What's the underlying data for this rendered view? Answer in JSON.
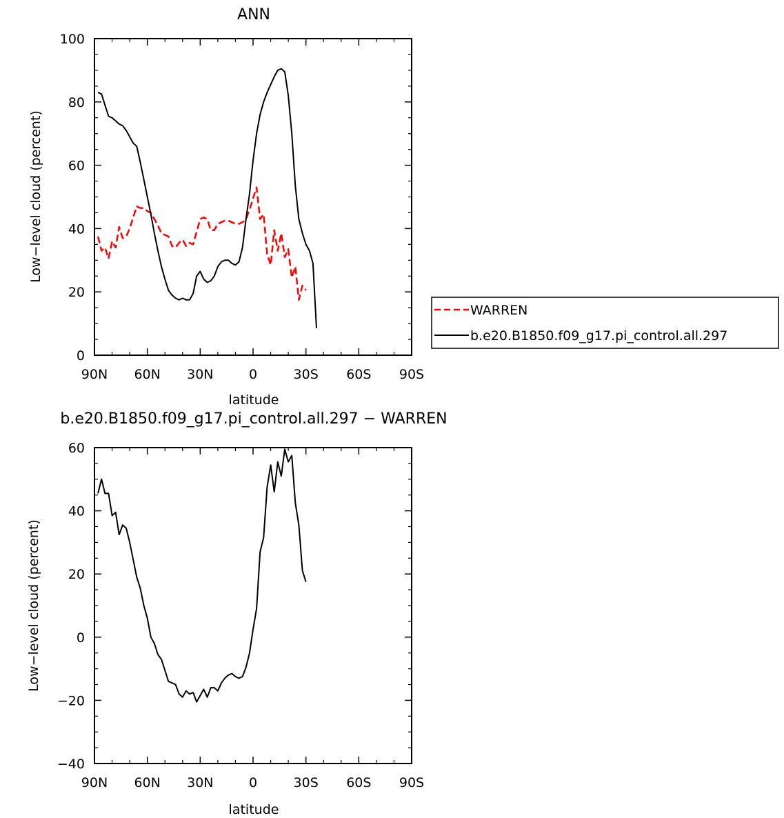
{
  "chart_data": [
    {
      "type": "line",
      "title": "ANN",
      "xlabel": "latitude",
      "ylabel": "Low−level cloud (percent)",
      "xlim": [
        90,
        -90
      ],
      "ylim": [
        0,
        100
      ],
      "yticks": [
        0,
        20,
        40,
        60,
        80,
        100
      ],
      "xticks": [
        {
          "value": 90,
          "label": "90N"
        },
        {
          "value": 60,
          "label": "60N"
        },
        {
          "value": 30,
          "label": "30N"
        },
        {
          "value": 0,
          "label": "0"
        },
        {
          "value": -30,
          "label": "30S"
        },
        {
          "value": -60,
          "label": "60S"
        },
        {
          "value": -90,
          "label": "90S"
        }
      ],
      "legend": "right",
      "series": [
        {
          "name": "WARREN",
          "color": "#ff0000",
          "dash": true,
          "points": [
            [
              88,
              37.5
            ],
            [
              86,
              33
            ],
            [
              84,
              34
            ],
            [
              82,
              30.5
            ],
            [
              80,
              36
            ],
            [
              78,
              34
            ],
            [
              76,
              40.5
            ],
            [
              74,
              37
            ],
            [
              72,
              37.5
            ],
            [
              70,
              40
            ],
            [
              68,
              43.5
            ],
            [
              66,
              47
            ],
            [
              64,
              46.5
            ],
            [
              62,
              46.5
            ],
            [
              60,
              45.5
            ],
            [
              58,
              45
            ],
            [
              56,
              43
            ],
            [
              54,
              41
            ],
            [
              52,
              38.5
            ],
            [
              50,
              38
            ],
            [
              48,
              37.5
            ],
            [
              46,
              34.5
            ],
            [
              44,
              34
            ],
            [
              42,
              35.5
            ],
            [
              40,
              36.5
            ],
            [
              38,
              34.5
            ],
            [
              36,
              35.5
            ],
            [
              34,
              35
            ],
            [
              32,
              39
            ],
            [
              30,
              43
            ],
            [
              28,
              43.5
            ],
            [
              26,
              43
            ],
            [
              24,
              39.5
            ],
            [
              22,
              39.5
            ],
            [
              20,
              41.5
            ],
            [
              18,
              42
            ],
            [
              16,
              42.5
            ],
            [
              14,
              42.5
            ],
            [
              12,
              42
            ],
            [
              10,
              41.5
            ],
            [
              8,
              41.5
            ],
            [
              6,
              42
            ],
            [
              4,
              43
            ],
            [
              2,
              46
            ],
            [
              0,
              49.5
            ],
            [
              -2,
              53
            ],
            [
              -4,
              43
            ],
            [
              -6,
              44.5
            ],
            [
              -8,
              32
            ],
            [
              -10,
              28.5
            ],
            [
              -12,
              39.5
            ],
            [
              -14,
              33
            ],
            [
              -16,
              38.5
            ],
            [
              -18,
              31
            ],
            [
              -20,
              33.5
            ],
            [
              -22,
              24.5
            ],
            [
              -24,
              28
            ],
            [
              -26,
              17.5
            ],
            [
              -28,
              22
            ],
            [
              -30,
              20.5
            ]
          ]
        },
        {
          "name": "b.e20.B1850.f09_g17.pi_control.all.297",
          "color": "#000000",
          "dash": false,
          "points": [
            [
              88,
              83
            ],
            [
              86,
              82.5
            ],
            [
              84,
              79
            ],
            [
              82,
              75.5
            ],
            [
              80,
              75
            ],
            [
              78,
              74
            ],
            [
              76,
              73
            ],
            [
              74,
              72.5
            ],
            [
              72,
              71
            ],
            [
              70,
              69
            ],
            [
              68,
              67
            ],
            [
              66,
              66
            ],
            [
              64,
              61
            ],
            [
              62,
              55.5
            ],
            [
              60,
              50
            ],
            [
              58,
              44.5
            ],
            [
              56,
              38.5
            ],
            [
              54,
              33
            ],
            [
              52,
              28
            ],
            [
              50,
              24
            ],
            [
              48,
              20.5
            ],
            [
              46,
              19
            ],
            [
              44,
              18
            ],
            [
              42,
              17.5
            ],
            [
              40,
              18
            ],
            [
              38,
              17.5
            ],
            [
              36,
              17.5
            ],
            [
              34,
              19.5
            ],
            [
              32,
              25
            ],
            [
              30,
              26.5
            ],
            [
              28,
              24
            ],
            [
              26,
              23
            ],
            [
              24,
              23.5
            ],
            [
              22,
              25
            ],
            [
              20,
              28
            ],
            [
              18,
              29.5
            ],
            [
              16,
              30
            ],
            [
              14,
              30
            ],
            [
              12,
              29
            ],
            [
              10,
              28.5
            ],
            [
              8,
              29.5
            ],
            [
              6,
              34
            ],
            [
              4,
              43
            ],
            [
              2,
              51
            ],
            [
              0,
              61.5
            ],
            [
              -2,
              70
            ],
            [
              -4,
              76
            ],
            [
              -6,
              80
            ],
            [
              -8,
              83
            ],
            [
              -10,
              85.5
            ],
            [
              -12,
              88
            ],
            [
              -14,
              90
            ],
            [
              -16,
              90.5
            ],
            [
              -18,
              89.5
            ],
            [
              -20,
              82
            ],
            [
              -22,
              70
            ],
            [
              -24,
              53.5
            ],
            [
              -26,
              43
            ],
            [
              -28,
              38.5
            ],
            [
              -30,
              35
            ],
            [
              -32,
              33
            ],
            [
              -34,
              29
            ],
            [
              -36,
              8.5
            ]
          ]
        }
      ]
    },
    {
      "type": "line",
      "title": "b.e20.B1850.f09_g17.pi_control.all.297 − WARREN",
      "xlabel": "latitude",
      "ylabel": "Low−level cloud (percent)",
      "xlim": [
        90,
        -90
      ],
      "ylim": [
        -40,
        60
      ],
      "yticks": [
        -40,
        -20,
        0,
        20,
        40,
        60
      ],
      "xticks": [
        {
          "value": 90,
          "label": "90N"
        },
        {
          "value": 60,
          "label": "60N"
        },
        {
          "value": 30,
          "label": "30N"
        },
        {
          "value": 0,
          "label": "0"
        },
        {
          "value": -30,
          "label": "30S"
        },
        {
          "value": -60,
          "label": "60S"
        },
        {
          "value": -90,
          "label": "90S"
        }
      ],
      "series": [
        {
          "color": "#000000",
          "dash": false,
          "points": [
            [
              88,
              45.5
            ],
            [
              86,
              50
            ],
            [
              84,
              45.5
            ],
            [
              82,
              45.5
            ],
            [
              80,
              38.5
            ],
            [
              78,
              39.5
            ],
            [
              76,
              32.5
            ],
            [
              74,
              35.5
            ],
            [
              72,
              34.5
            ],
            [
              70,
              30
            ],
            [
              68,
              24.5
            ],
            [
              66,
              19
            ],
            [
              64,
              15.5
            ],
            [
              62,
              10
            ],
            [
              60,
              6
            ],
            [
              58,
              0
            ],
            [
              56,
              -2
            ],
            [
              54,
              -5.5
            ],
            [
              52,
              -7
            ],
            [
              50,
              -10.5
            ],
            [
              48,
              -14
            ],
            [
              46,
              -14.5
            ],
            [
              44,
              -15
            ],
            [
              42,
              -18
            ],
            [
              40,
              -19
            ],
            [
              38,
              -17
            ],
            [
              36,
              -18
            ],
            [
              34,
              -17.5
            ],
            [
              32,
              -20.5
            ],
            [
              30,
              -18.5
            ],
            [
              28,
              -16.5
            ],
            [
              26,
              -19
            ],
            [
              24,
              -16
            ],
            [
              22,
              -16
            ],
            [
              20,
              -17
            ],
            [
              18,
              -14.5
            ],
            [
              16,
              -13
            ],
            [
              14,
              -12
            ],
            [
              12,
              -11.5
            ],
            [
              10,
              -12.5
            ],
            [
              8,
              -13
            ],
            [
              6,
              -12.5
            ],
            [
              4,
              -9.5
            ],
            [
              2,
              -5
            ],
            [
              0,
              2.5
            ],
            [
              -2,
              9
            ],
            [
              -4,
              27
            ],
            [
              -6,
              31.5
            ],
            [
              -8,
              47.5
            ],
            [
              -10,
              54.5
            ],
            [
              -12,
              46
            ],
            [
              -14,
              55.5
            ],
            [
              -16,
              51
            ],
            [
              -18,
              59.5
            ],
            [
              -20,
              55.5
            ],
            [
              -22,
              57.5
            ],
            [
              -24,
              42.5
            ],
            [
              -26,
              35.5
            ],
            [
              -28,
              21
            ],
            [
              -30,
              17.5
            ]
          ]
        }
      ]
    }
  ]
}
